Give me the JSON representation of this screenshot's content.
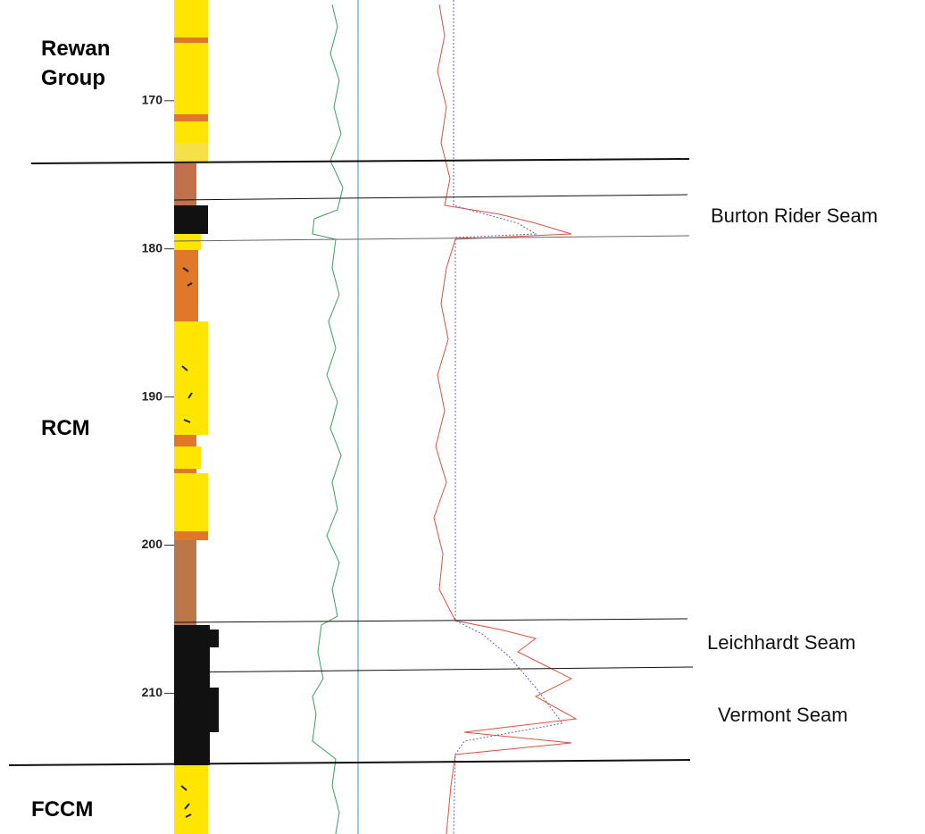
{
  "formations": [
    "Rewan Group",
    "RCM",
    "FCCM"
  ],
  "seams": [
    "Burton Rider Seam",
    "Leichhardt Seam",
    "Vermont Seam"
  ],
  "depth_axis": {
    "lim": [
      163.2,
      219.5
    ],
    "ticks": [
      170,
      180,
      190,
      200,
      210
    ]
  }
}
